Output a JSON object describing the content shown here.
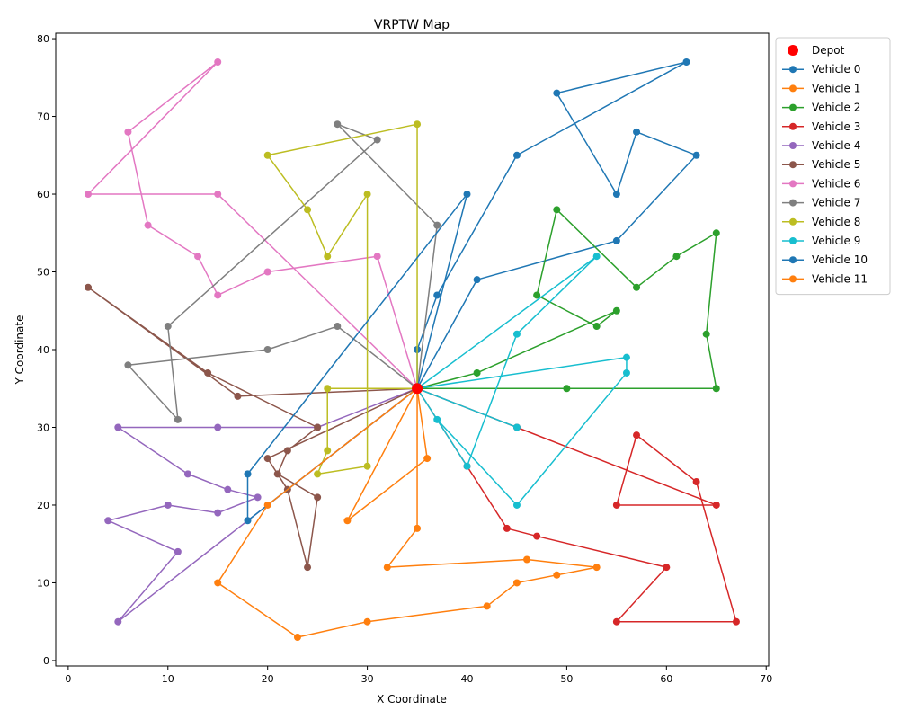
{
  "chart_data": {
    "type": "line",
    "title": "VRPTW Map",
    "xlabel": "X Coordinate",
    "ylabel": "Y Coordinate",
    "xlim": [
      -1.25,
      70.25
    ],
    "ylim": [
      -0.7,
      80.7
    ],
    "xticks": [
      0,
      10,
      20,
      30,
      40,
      50,
      60,
      70
    ],
    "yticks": [
      0,
      10,
      20,
      30,
      40,
      50,
      60,
      70,
      80
    ],
    "grid": false,
    "legend": "upper-right-outside",
    "depot": {
      "name": "Depot",
      "x": 35,
      "y": 35,
      "color": "#ff0000"
    },
    "series": [
      {
        "name": "Vehicle 0",
        "color": "#1f77b4",
        "points": [
          [
            35,
            35
          ],
          [
            41,
            49
          ],
          [
            55,
            54
          ],
          [
            63,
            65
          ],
          [
            57,
            68
          ],
          [
            55,
            60
          ],
          [
            49,
            73
          ],
          [
            62,
            77
          ],
          [
            45,
            65
          ],
          [
            37,
            47
          ],
          [
            35,
            40
          ],
          [
            35,
            35
          ]
        ]
      },
      {
        "name": "Vehicle 1",
        "color": "#ff7f0e",
        "points": [
          [
            35,
            35
          ],
          [
            36,
            26
          ],
          [
            28,
            18
          ],
          [
            35,
            35
          ]
        ]
      },
      {
        "name": "Vehicle 2",
        "color": "#2ca02c",
        "points": [
          [
            35,
            35
          ],
          [
            41,
            37
          ],
          [
            55,
            45
          ],
          [
            53,
            43
          ],
          [
            47,
            47
          ],
          [
            49,
            58
          ],
          [
            57,
            48
          ],
          [
            61,
            52
          ],
          [
            65,
            55
          ],
          [
            64,
            42
          ],
          [
            65,
            35
          ],
          [
            50,
            35
          ],
          [
            35,
            35
          ]
        ]
      },
      {
        "name": "Vehicle 3",
        "color": "#d62728",
        "points": [
          [
            35,
            35
          ],
          [
            40,
            25
          ],
          [
            44,
            17
          ],
          [
            47,
            16
          ],
          [
            60,
            12
          ],
          [
            55,
            5
          ],
          [
            67,
            5
          ],
          [
            63,
            23
          ],
          [
            57,
            29
          ],
          [
            55,
            20
          ],
          [
            65,
            20
          ],
          [
            45,
            30
          ],
          [
            35,
            35
          ]
        ]
      },
      {
        "name": "Vehicle 4",
        "color": "#9467bd",
        "points": [
          [
            35,
            35
          ],
          [
            25,
            30
          ],
          [
            15,
            30
          ],
          [
            5,
            30
          ],
          [
            12,
            24
          ],
          [
            16,
            22
          ],
          [
            19,
            21
          ],
          [
            15,
            19
          ],
          [
            10,
            20
          ],
          [
            4,
            18
          ],
          [
            11,
            14
          ],
          [
            5,
            5
          ],
          [
            35,
            35
          ]
        ]
      },
      {
        "name": "Vehicle 5",
        "color": "#8c564b",
        "points": [
          [
            35,
            35
          ],
          [
            20,
            26
          ],
          [
            22,
            22
          ],
          [
            24,
            12
          ],
          [
            25,
            21
          ],
          [
            21,
            24
          ],
          [
            22,
            27
          ],
          [
            25,
            30
          ],
          [
            14,
            37
          ],
          [
            2,
            48
          ],
          [
            17,
            34
          ],
          [
            35,
            35
          ]
        ]
      },
      {
        "name": "Vehicle 6",
        "color": "#e377c2",
        "points": [
          [
            35,
            35
          ],
          [
            31,
            52
          ],
          [
            20,
            50
          ],
          [
            15,
            47
          ],
          [
            13,
            52
          ],
          [
            8,
            56
          ],
          [
            6,
            68
          ],
          [
            15,
            77
          ],
          [
            2,
            60
          ],
          [
            15,
            60
          ],
          [
            35,
            35
          ]
        ]
      },
      {
        "name": "Vehicle 7",
        "color": "#7f7f7f",
        "points": [
          [
            35,
            35
          ],
          [
            27,
            43
          ],
          [
            20,
            40
          ],
          [
            6,
            38
          ],
          [
            11,
            31
          ],
          [
            10,
            43
          ],
          [
            31,
            67
          ],
          [
            27,
            69
          ],
          [
            37,
            56
          ],
          [
            35,
            35
          ]
        ]
      },
      {
        "name": "Vehicle 8",
        "color": "#bcbd22",
        "points": [
          [
            35,
            35
          ],
          [
            26,
            35
          ],
          [
            26,
            27
          ],
          [
            25,
            24
          ],
          [
            30,
            25
          ],
          [
            30,
            60
          ],
          [
            26,
            52
          ],
          [
            24,
            58
          ],
          [
            20,
            65
          ],
          [
            35,
            69
          ],
          [
            35,
            35
          ]
        ]
      },
      {
        "name": "Vehicle 9",
        "color": "#17becf",
        "points": [
          [
            35,
            35
          ],
          [
            56,
            39
          ],
          [
            56,
            37
          ],
          [
            45,
            20
          ],
          [
            37,
            31
          ],
          [
            35,
            35
          ],
          [
            45,
            30
          ],
          [
            35,
            35
          ],
          [
            40,
            25
          ],
          [
            45,
            42
          ],
          [
            53,
            52
          ],
          [
            35,
            35
          ]
        ]
      },
      {
        "name": "Vehicle 10",
        "color": "#1f77b4",
        "points": [
          [
            35,
            35
          ],
          [
            18,
            18
          ],
          [
            18,
            24
          ],
          [
            40,
            60
          ],
          [
            35,
            35
          ]
        ]
      },
      {
        "name": "Vehicle 11",
        "color": "#ff7f0e",
        "points": [
          [
            35,
            35
          ],
          [
            20,
            20
          ],
          [
            15,
            10
          ],
          [
            23,
            3
          ],
          [
            30,
            5
          ],
          [
            42,
            7
          ],
          [
            45,
            10
          ],
          [
            49,
            11
          ],
          [
            53,
            12
          ],
          [
            46,
            13
          ],
          [
            32,
            12
          ],
          [
            35,
            17
          ],
          [
            35,
            35
          ]
        ]
      }
    ]
  }
}
